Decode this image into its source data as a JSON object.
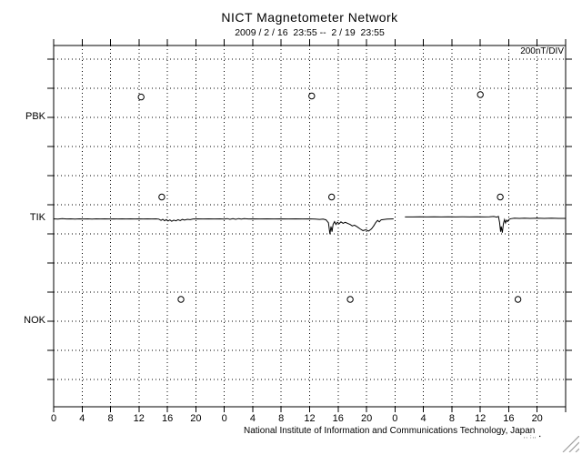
{
  "header": {
    "title": "NICT Magnetometer Network",
    "subtitle": "2009 / 2 / 16  23:55 --  2 / 19  23:55"
  },
  "plot": {
    "scale_label": "200nT/DIV",
    "footer": "National Institute of Information and Communications Technology, Japan",
    "fineprint": ",,  ;,, ▪"
  },
  "chart_data": {
    "type": "line",
    "title": "NICT Magnetometer Network",
    "time_range": "2009/2/16 23:55 -- 2/19 23:55",
    "x": {
      "unit": "hours",
      "min": 0,
      "max": 72,
      "tick_step_hours": 4,
      "tick_labels": [
        "0",
        "4",
        "8",
        "12",
        "16",
        "20",
        "0",
        "4",
        "8",
        "12",
        "16",
        "20",
        "0",
        "4",
        "8",
        "12",
        "16",
        "20"
      ],
      "grid": "dotted"
    },
    "y": {
      "type": "stations",
      "stations": [
        "PBK",
        "TIK",
        "NOK"
      ],
      "scale_per_div_nT": 200,
      "grid": "dotted"
    },
    "series": [
      {
        "name": "TIK",
        "unit": "nT offset from baseline",
        "segments": [
          [
            [
              0,
              -3
            ],
            [
              0.6,
              -5
            ],
            [
              1.2,
              -2
            ],
            [
              1.8,
              -4
            ],
            [
              2.4,
              -3
            ],
            [
              3,
              -5
            ],
            [
              3.6,
              -3
            ],
            [
              4.2,
              -4
            ],
            [
              4.8,
              -3
            ],
            [
              5.4,
              -5
            ],
            [
              6,
              -3
            ],
            [
              6.6,
              -4
            ],
            [
              7.2,
              -3
            ],
            [
              7.8,
              -4
            ],
            [
              8.4,
              -3
            ],
            [
              9,
              -4
            ],
            [
              9.6,
              -3
            ],
            [
              10.2,
              -4
            ],
            [
              10.8,
              -3
            ],
            [
              11.4,
              -4
            ],
            [
              12,
              -3
            ],
            [
              12.6,
              -4
            ],
            [
              13.2,
              -3
            ],
            [
              13.8,
              -4
            ],
            [
              14.4,
              -3
            ],
            [
              14.8,
              -5
            ],
            [
              15.1,
              -14
            ],
            [
              15.35,
              -6
            ],
            [
              15.6,
              -16
            ],
            [
              15.85,
              -8
            ],
            [
              16.1,
              -18
            ],
            [
              16.35,
              -10
            ],
            [
              16.6,
              -20
            ],
            [
              16.9,
              -12
            ],
            [
              17.2,
              -17
            ],
            [
              17.5,
              -9
            ],
            [
              17.8,
              -15
            ],
            [
              18.1,
              -7
            ],
            [
              18.4,
              -12
            ],
            [
              18.8,
              -6
            ],
            [
              19.2,
              -9
            ],
            [
              19.6,
              -4
            ],
            [
              20.2,
              -3
            ],
            [
              21,
              -4
            ],
            [
              21.8,
              -3
            ],
            [
              22.6,
              -4
            ],
            [
              23.4,
              -3
            ],
            [
              24,
              -5
            ],
            [
              24.4,
              -1
            ],
            [
              24.8,
              -6
            ],
            [
              25.2,
              -2
            ],
            [
              25.6,
              -6
            ],
            [
              26,
              -1
            ],
            [
              26.4,
              -5
            ],
            [
              26.8,
              -2
            ],
            [
              27.4,
              -4
            ],
            [
              28,
              -3
            ],
            [
              29,
              -4
            ],
            [
              30,
              -3
            ],
            [
              31,
              -4
            ],
            [
              32,
              -3
            ],
            [
              33,
              -4
            ],
            [
              34,
              -3
            ],
            [
              35,
              -4
            ],
            [
              36,
              -3
            ],
            [
              36.8,
              -5
            ],
            [
              37.4,
              -7
            ],
            [
              37.9,
              -5
            ],
            [
              38.3,
              -10
            ],
            [
              38.65,
              -30
            ],
            [
              38.85,
              -108
            ],
            [
              39,
              -55
            ],
            [
              39.15,
              -92
            ],
            [
              39.3,
              -40
            ],
            [
              39.5,
              -22
            ],
            [
              39.7,
              -42
            ],
            [
              39.9,
              -26
            ],
            [
              40.15,
              -36
            ],
            [
              40.4,
              -24
            ],
            [
              40.7,
              -34
            ],
            [
              41,
              -27
            ],
            [
              41.3,
              -33
            ],
            [
              41.7,
              -42
            ],
            [
              42,
              -52
            ],
            [
              42.3,
              -46
            ],
            [
              42.7,
              -58
            ],
            [
              43.1,
              -72
            ],
            [
              43.5,
              -84
            ],
            [
              43.9,
              -78
            ],
            [
              44.3,
              -87
            ],
            [
              44.7,
              -72
            ],
            [
              45,
              -52
            ],
            [
              45.3,
              -28
            ],
            [
              45.55,
              -14
            ],
            [
              45.8,
              -24
            ],
            [
              46.05,
              -10
            ],
            [
              46.4,
              -8
            ],
            [
              46.9,
              -5
            ],
            [
              47.4,
              -4
            ],
            [
              47.8,
              -3
            ]
          ],
          [
            [
              49.4,
              10
            ],
            [
              50.5,
              10
            ],
            [
              51.5,
              11
            ],
            [
              52.5,
              10
            ],
            [
              53.5,
              11
            ],
            [
              54.5,
              10
            ],
            [
              55.5,
              11
            ],
            [
              56.5,
              10
            ],
            [
              57.5,
              11
            ],
            [
              58.5,
              10
            ],
            [
              59.5,
              11
            ],
            [
              60.5,
              10
            ],
            [
              61.3,
              11
            ],
            [
              61.9,
              13
            ],
            [
              62.3,
              9
            ],
            [
              62.55,
              14
            ],
            [
              62.7,
              -25
            ],
            [
              62.85,
              -92
            ],
            [
              62.95,
              -55
            ],
            [
              63.1,
              -98
            ],
            [
              63.25,
              -35
            ],
            [
              63.4,
              -8
            ],
            [
              63.55,
              -32
            ],
            [
              63.7,
              -12
            ],
            [
              63.85,
              -22
            ],
            [
              64.05,
              -6
            ],
            [
              64.3,
              -2
            ],
            [
              64.8,
              2
            ],
            [
              65.5,
              0
            ],
            [
              66.2,
              2
            ],
            [
              67,
              0
            ],
            [
              68,
              1
            ],
            [
              69,
              0
            ],
            [
              70,
              1
            ],
            [
              71,
              0
            ],
            [
              72,
              0
            ]
          ]
        ]
      }
    ],
    "event_markers": [
      {
        "station": "PBK",
        "hour": 12.3,
        "offset_nT": 140
      },
      {
        "station": "PBK",
        "hour": 36.3,
        "offset_nT": 147
      },
      {
        "station": "PBK",
        "hour": 60.0,
        "offset_nT": 156
      },
      {
        "station": "TIK",
        "hour": 15.2,
        "offset_nT": 147
      },
      {
        "station": "TIK",
        "hour": 39.1,
        "offset_nT": 147
      },
      {
        "station": "TIK",
        "hour": 62.8,
        "offset_nT": 147
      },
      {
        "station": "NOK",
        "hour": 17.9,
        "offset_nT": 150
      },
      {
        "station": "NOK",
        "hour": 41.7,
        "offset_nT": 150
      },
      {
        "station": "NOK",
        "hour": 65.3,
        "offset_nT": 150
      }
    ]
  }
}
